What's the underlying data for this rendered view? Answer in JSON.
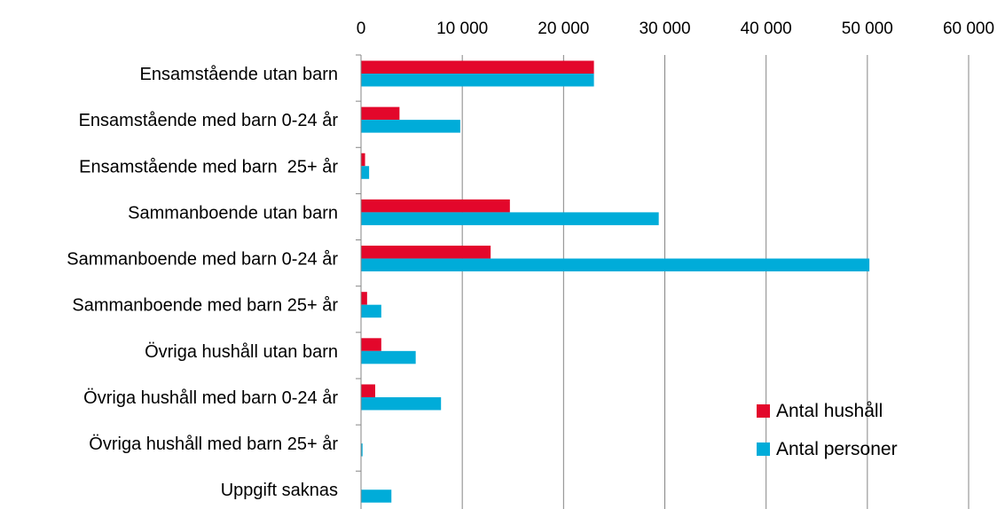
{
  "chart_data": {
    "type": "bar",
    "orientation": "horizontal",
    "title": "",
    "xlabel": "",
    "ylabel": "",
    "xlim": [
      0,
      60000
    ],
    "x_ticks": [
      0,
      10000,
      20000,
      30000,
      40000,
      50000,
      60000
    ],
    "x_tick_labels": [
      "0",
      "10 000",
      "20 000",
      "30 000",
      "40 000",
      "50 000",
      "60 000"
    ],
    "x_axis_position": "top",
    "grid": "vertical",
    "legend_position": "bottom-right",
    "categories": [
      "Ensamstående utan barn",
      "Ensamstående med barn 0-24 år",
      "Ensamstående med barn  25+ år",
      "Sammanboende utan barn",
      "Sammanboende med barn 0-24 år",
      "Sammanboende med barn 25+ år",
      "Övriga hushåll utan barn",
      "Övriga hushåll med barn 0-24 år",
      "Övriga hushåll med barn 25+ år",
      "Uppgift saknas"
    ],
    "series": [
      {
        "name": "Antal hushåll",
        "color": "#e3072b",
        "values": [
          23000,
          3800,
          400,
          14700,
          12800,
          600,
          2000,
          1400,
          20,
          0
        ]
      },
      {
        "name": "Antal personer",
        "color": "#00acd9",
        "values": [
          23000,
          9800,
          800,
          29400,
          50200,
          2000,
          5400,
          7900,
          150,
          3000
        ]
      }
    ]
  }
}
